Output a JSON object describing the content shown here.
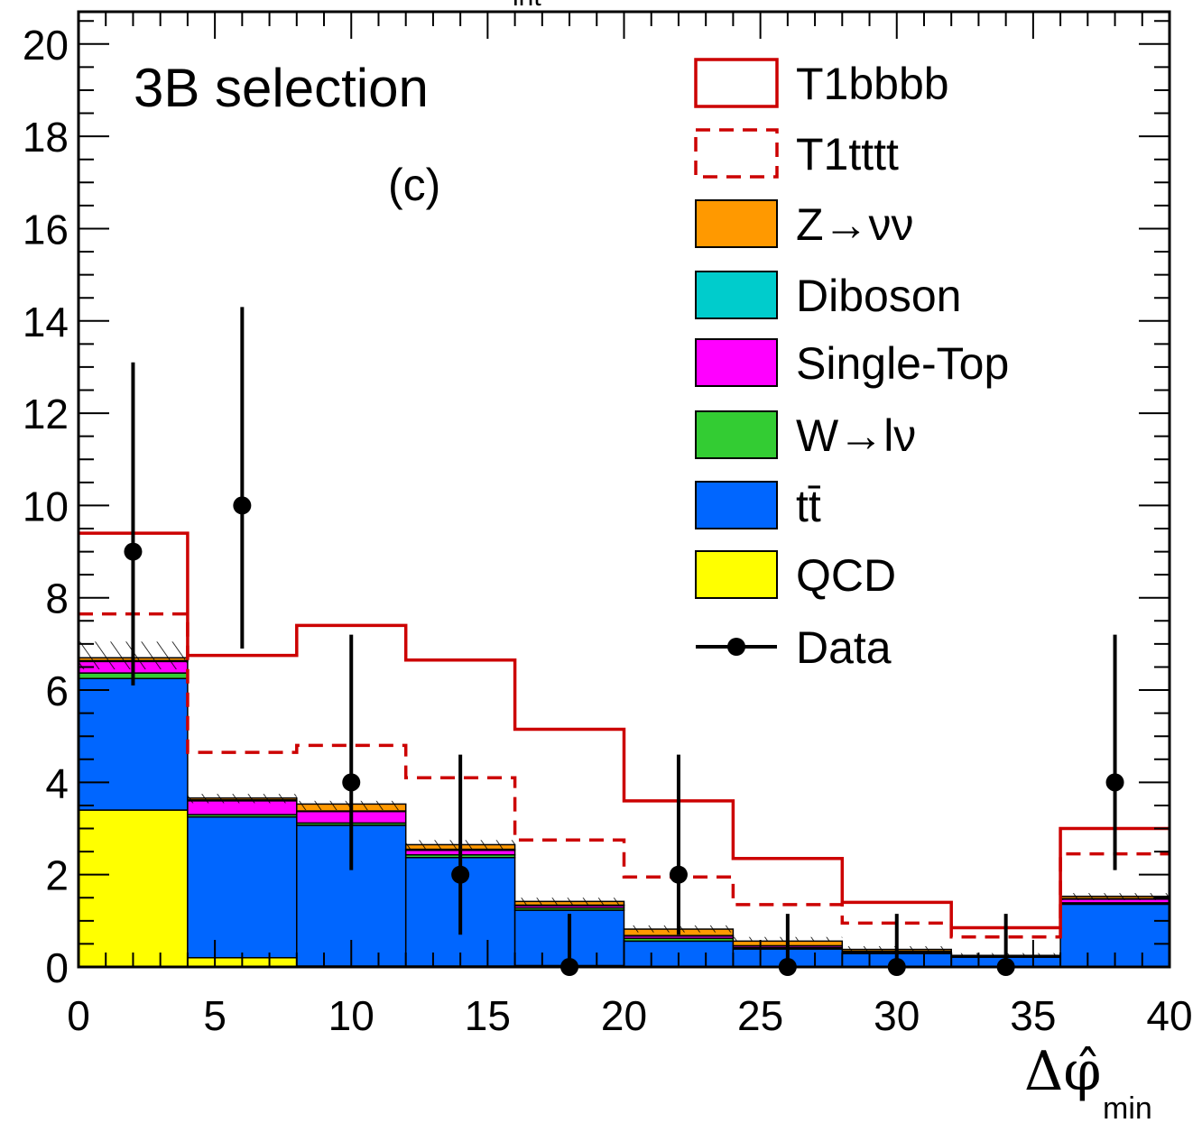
{
  "chart_data": {
    "type": "bar",
    "stacked": true,
    "xlabel": "Δφ̂",
    "xlabel_subscript": "min",
    "ylabel": "",
    "xlim": [
      0,
      40
    ],
    "ylim": [
      0,
      20.7
    ],
    "x_ticks": [
      0,
      5,
      10,
      15,
      20,
      25,
      30,
      35,
      40
    ],
    "y_ticks": [
      0,
      2,
      4,
      6,
      8,
      10,
      12,
      14,
      16,
      18,
      20
    ],
    "bin_edges": [
      0,
      4,
      8,
      12,
      16,
      20,
      24,
      28,
      32,
      36,
      40
    ],
    "annotations": [
      "3B selection",
      "(c)"
    ],
    "top_label_fragment": "int",
    "legend_position": "top-right",
    "grid": false,
    "stack_series": [
      {
        "name": "QCD",
        "color": "#ffff00",
        "values": [
          3.4,
          0.2,
          0.02,
          0.02,
          0.03,
          0.01,
          0.01,
          0.01,
          0.01,
          0.01
        ]
      },
      {
        "name": "tt̄",
        "color": "#0066ff",
        "values": [
          2.85,
          3.05,
          3.05,
          2.35,
          1.2,
          0.55,
          0.38,
          0.28,
          0.2,
          1.35
        ]
      },
      {
        "name": "W→lν",
        "color": "#33cc33",
        "values": [
          0.12,
          0.05,
          0.05,
          0.06,
          0.05,
          0.06,
          0.03,
          0.02,
          0.01,
          0.03
        ]
      },
      {
        "name": "Single-Top",
        "color": "#ff00ff",
        "values": [
          0.25,
          0.3,
          0.25,
          0.1,
          0.05,
          0.05,
          0.04,
          0.03,
          0.01,
          0.08
        ]
      },
      {
        "name": "Diboson",
        "color": "#00cccc",
        "values": [
          0.02,
          0.02,
          0.01,
          0.02,
          0.01,
          0.01,
          0.0,
          0.0,
          0.0,
          0.01
        ]
      },
      {
        "name": "Z→νν",
        "color": "#ff9900",
        "values": [
          0.06,
          0.04,
          0.15,
          0.1,
          0.08,
          0.14,
          0.1,
          0.04,
          0.02,
          0.05
        ]
      }
    ],
    "signal_series": [
      {
        "name": "T1bbbb",
        "style": "solid",
        "color": "#cc0000",
        "values": [
          9.4,
          6.75,
          7.4,
          6.65,
          5.15,
          3.6,
          2.35,
          1.4,
          0.85,
          3.0
        ]
      },
      {
        "name": "T1tttt",
        "style": "dashed",
        "color": "#cc0000",
        "values": [
          7.65,
          4.65,
          4.8,
          4.1,
          2.75,
          1.95,
          1.35,
          0.95,
          0.65,
          2.45
        ]
      }
    ],
    "uncertainty_band": {
      "down": [
        6.45,
        3.55,
        3.4,
        2.55,
        1.35,
        0.75,
        0.55,
        0.35,
        0.24,
        1.45
      ],
      "up": [
        7.05,
        3.75,
        3.6,
        2.75,
        1.5,
        0.9,
        0.65,
        0.45,
        0.3,
        1.6
      ]
    },
    "data": {
      "name": "Data",
      "x": [
        2,
        6,
        10,
        14,
        18,
        22,
        26,
        30,
        34,
        38
      ],
      "y": [
        9,
        10,
        4,
        2,
        0,
        2,
        0,
        0,
        0,
        4
      ],
      "err_low": [
        2.9,
        3.1,
        1.9,
        1.3,
        0,
        1.3,
        0,
        0,
        0,
        1.9
      ],
      "err_high": [
        4.1,
        4.3,
        3.2,
        2.6,
        1.15,
        2.6,
        1.15,
        1.15,
        1.15,
        3.2
      ]
    },
    "legend": [
      {
        "label": "T1bbbb",
        "kind": "line-solid",
        "color": "#cc0000"
      },
      {
        "label": "T1tttt",
        "kind": "line-dashed",
        "color": "#cc0000"
      },
      {
        "label": "Z→νν",
        "kind": "fill",
        "color": "#ff9900"
      },
      {
        "label": "Diboson",
        "kind": "fill",
        "color": "#00cccc"
      },
      {
        "label": "Single-Top",
        "kind": "fill",
        "color": "#ff00ff"
      },
      {
        "label": "W→lν",
        "kind": "fill",
        "color": "#33cc33"
      },
      {
        "label": "tt̄",
        "kind": "fill",
        "color": "#0066ff"
      },
      {
        "label": "QCD",
        "kind": "fill",
        "color": "#ffff00"
      },
      {
        "label": "Data",
        "kind": "marker",
        "color": "#000000"
      }
    ]
  }
}
